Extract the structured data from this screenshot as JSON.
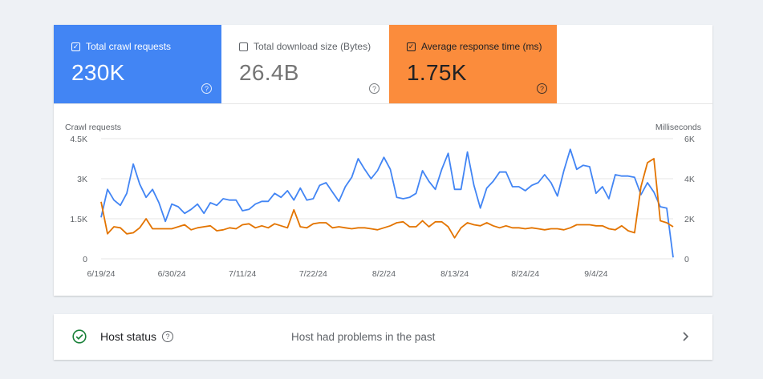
{
  "metrics": [
    {
      "label": "Total crawl requests",
      "value": "230K",
      "checked": true,
      "bg": "#4285f4"
    },
    {
      "label": "Total download size (Bytes)",
      "value": "26.4B",
      "checked": false,
      "bg": "#ffffff"
    },
    {
      "label": "Average response time (ms)",
      "value": "1.75K",
      "checked": true,
      "bg": "#fb8c3c"
    }
  ],
  "chart_data": {
    "type": "line",
    "ylabel_left": "Crawl requests",
    "ylabel_right": "Milliseconds",
    "yticks_left": [
      "0",
      "1.5K",
      "3K",
      "4.5K"
    ],
    "yticks_right": [
      "0",
      "2K",
      "4K",
      "6K"
    ],
    "ylim_left": [
      0,
      4500
    ],
    "ylim_right": [
      0,
      6000
    ],
    "grid": true,
    "x_start": "2024-06-19",
    "xticks": [
      "6/19/24",
      "6/30/24",
      "7/11/24",
      "7/22/24",
      "8/2/24",
      "8/13/24",
      "8/24/24",
      "9/4/24"
    ],
    "series": [
      {
        "name": "Total crawl requests",
        "color": "#4285f4",
        "values": [
          1550,
          2600,
          2200,
          2000,
          2450,
          3550,
          2800,
          2300,
          2600,
          2100,
          1400,
          2050,
          1950,
          1700,
          1850,
          2050,
          1700,
          2100,
          2000,
          2250,
          2200,
          2200,
          1800,
          1850,
          2050,
          2150,
          2150,
          2450,
          2300,
          2550,
          2200,
          2650,
          2200,
          2250,
          2750,
          2850,
          2500,
          2150,
          2700,
          3050,
          3750,
          3350,
          3000,
          3300,
          3800,
          3350,
          2300,
          2250,
          2300,
          2450,
          3300,
          2900,
          2600,
          3350,
          3950,
          2600,
          2600,
          4000,
          2750,
          1900,
          2650,
          2900,
          3250,
          3250,
          2700,
          2700,
          2550,
          2750,
          2850,
          3150,
          2850,
          2350,
          3300,
          4100,
          3350,
          3500,
          3450,
          2450,
          2700,
          2250,
          3150,
          3100,
          3100,
          3050,
          2400,
          2850,
          2500,
          1950,
          1900,
          50
        ]
      },
      {
        "name": "Average response time (ms)",
        "color": "#e37400",
        "values": [
          2850,
          1250,
          1600,
          1550,
          1250,
          1300,
          1550,
          2000,
          1500,
          1500,
          1500,
          1500,
          1600,
          1700,
          1450,
          1550,
          1600,
          1650,
          1400,
          1450,
          1550,
          1500,
          1700,
          1750,
          1550,
          1650,
          1550,
          1750,
          1650,
          1550,
          2450,
          1600,
          1550,
          1750,
          1800,
          1800,
          1550,
          1600,
          1550,
          1500,
          1550,
          1550,
          1500,
          1450,
          1550,
          1650,
          1800,
          1850,
          1600,
          1600,
          1900,
          1600,
          1850,
          1850,
          1600,
          1050,
          1550,
          1800,
          1700,
          1650,
          1800,
          1650,
          1550,
          1650,
          1550,
          1550,
          1500,
          1550,
          1500,
          1450,
          1500,
          1500,
          1450,
          1550,
          1700,
          1700,
          1700,
          1650,
          1650,
          1500,
          1450,
          1650,
          1400,
          1300,
          3600,
          4800,
          5000,
          1900,
          1800,
          1600
        ]
      }
    ]
  },
  "host": {
    "label": "Host status",
    "message": "Host had problems in the past"
  }
}
